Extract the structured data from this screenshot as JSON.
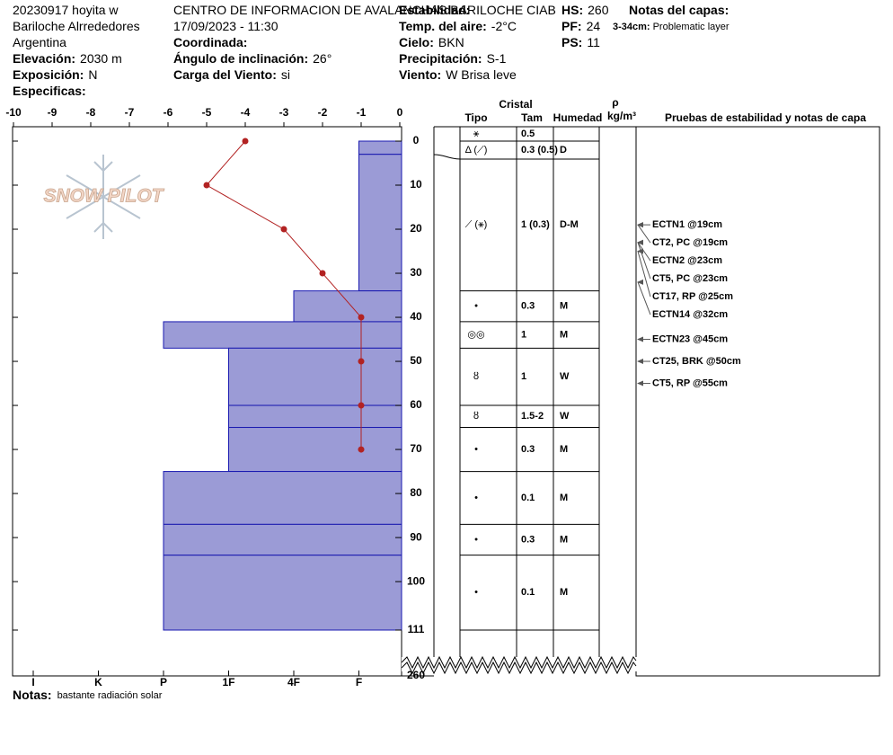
{
  "header": {
    "col1": [
      {
        "text": "20230917 hoyita w"
      },
      {
        "text": "Bariloche Alrrededores"
      },
      {
        "text": "Argentina"
      },
      {
        "label": "Elevación:",
        "value": "2030 m"
      },
      {
        "label": "Exposición:",
        "value": "N"
      },
      {
        "label": "Especificas:"
      }
    ],
    "col2": [
      {
        "text": "CENTRO DE INFORMACION DE AVALANCHAS BARILOCHE CIAB"
      },
      {
        "text": "17/09/2023 - 11:30"
      },
      {
        "label": "Coordinada:"
      },
      {
        "label": "Ángulo de inclinación:",
        "value": "26°"
      },
      {
        "label": "Carga del Viento:",
        "value": "si"
      }
    ],
    "col3": [
      {
        "label": "Estabilidad:"
      },
      {
        "label": "Temp. del aire:",
        "value": "-2°C"
      },
      {
        "label": "Cielo:",
        "value": "BKN"
      },
      {
        "label": "Precipitación:",
        "value": "S-1"
      },
      {
        "label": "Viento:",
        "value": "W Brisa leve"
      }
    ],
    "col4": [
      {
        "label": "HS:",
        "value": "260"
      },
      {
        "label": "PF:",
        "value": "24"
      },
      {
        "label": "PS:",
        "value": "11"
      }
    ],
    "col5": [
      {
        "label": "Notas del capas:"
      },
      {
        "label": "3-34cm:",
        "value": "Problematic layer"
      }
    ]
  },
  "watermark": "SNOW PILOT",
  "chart_data": {
    "type": "snow-profile",
    "xlim": [
      -10,
      0
    ],
    "xticks": [
      -10,
      -9,
      -8,
      -7,
      -6,
      -5,
      -4,
      -3,
      -2,
      -1,
      0
    ],
    "ylim": [
      0,
      111
    ],
    "yticks": [
      0,
      10,
      20,
      30,
      40,
      50,
      60,
      70,
      80,
      90,
      100,
      111
    ],
    "depth_bottom_label": "260",
    "hardness_ticks": [
      "I",
      "K",
      "P",
      "1F",
      "4F",
      "F"
    ],
    "layers": [
      {
        "top": 0,
        "bottom": 3,
        "hardness": "F"
      },
      {
        "top": 3,
        "bottom": 34,
        "hardness": "F"
      },
      {
        "top": 34,
        "bottom": 41,
        "hardness": "4F"
      },
      {
        "top": 41,
        "bottom": 47,
        "hardness": "P"
      },
      {
        "top": 47,
        "bottom": 60,
        "hardness": "1F"
      },
      {
        "top": 60,
        "bottom": 65,
        "hardness": "1F"
      },
      {
        "top": 65,
        "bottom": 75,
        "hardness": "1F"
      },
      {
        "top": 75,
        "bottom": 87,
        "hardness": "P"
      },
      {
        "top": 87,
        "bottom": 94,
        "hardness": "P"
      },
      {
        "top": 94,
        "bottom": 111,
        "hardness": "P"
      }
    ],
    "temperature": {
      "color": "#b22222",
      "depth": [
        0,
        10,
        20,
        30,
        40,
        50,
        60,
        70
      ],
      "values": [
        -4,
        -5,
        -3,
        -2,
        -1,
        -1,
        -1,
        -1
      ]
    },
    "table_headers": {
      "crystal": "Cristal",
      "type": "Tipo",
      "size": "Tam",
      "moisture": "Humedad",
      "density": "ρ",
      "density_unit": "kg/m³",
      "tests": "Pruebas de estabilidad y notas de capa"
    },
    "crystal_rows": [
      {
        "type": "⚹",
        "size": "0.5"
      },
      {
        "type": "Δ (⟋)",
        "size": "0.3 (0.5)",
        "moisture": "D"
      },
      {
        "type": "⟋ (⚹)",
        "size": "1 (0.3)",
        "moisture": "D-M"
      },
      {
        "type": "•",
        "size": "0.3",
        "moisture": "M"
      },
      {
        "type": "◎◎",
        "size": "1",
        "moisture": "M"
      },
      {
        "type": "ȣ",
        "size": "1",
        "moisture": "W"
      },
      {
        "type": "ȣ",
        "size": "1.5-2",
        "moisture": "W"
      },
      {
        "type": "•",
        "size": "0.3",
        "moisture": "M"
      },
      {
        "type": "•",
        "size": "0.1",
        "moisture": "M"
      },
      {
        "type": "•",
        "size": "0.3",
        "moisture": "M"
      },
      {
        "type": "•",
        "size": "0.1",
        "moisture": "M"
      }
    ],
    "tests": [
      {
        "label": "ECTN1 @19cm",
        "depth": 19
      },
      {
        "label": "CT2, PC @19cm",
        "depth": 19
      },
      {
        "label": "ECTN2 @23cm",
        "depth": 23
      },
      {
        "label": "CT5, PC @23cm",
        "depth": 23
      },
      {
        "label": "CT17, RP @25cm",
        "depth": 25
      },
      {
        "label": "ECTN14 @32cm",
        "depth": 32
      },
      {
        "label": "ECTN23 @45cm",
        "depth": 45
      },
      {
        "label": "CT25, BRK @50cm",
        "depth": 50
      },
      {
        "label": "CT5, RP @55cm",
        "depth": 55
      }
    ]
  },
  "footer": {
    "label": "Notas:",
    "value": "bastante radiación solar"
  }
}
